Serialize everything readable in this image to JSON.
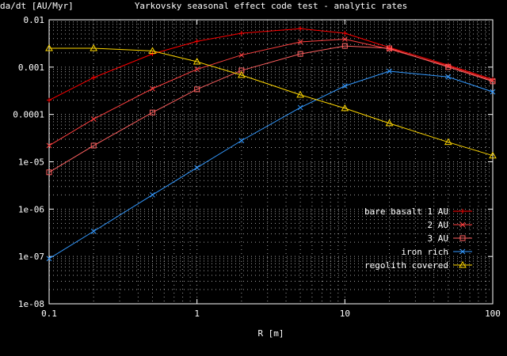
{
  "chart_data": {
    "type": "line",
    "title": "Yarkovsky seasonal effect code test - analytic rates",
    "xlabel": "R [m]",
    "ylabel": "da/dt [AU/Myr]",
    "xscale": "log",
    "yscale": "log",
    "xlim": [
      0.1,
      100
    ],
    "ylim": [
      1e-08,
      0.01
    ],
    "grid": true,
    "legend_position": "bottom-right",
    "x_tick_labels": [
      "0.1",
      "1",
      "10",
      "100"
    ],
    "y_tick_labels": [
      "1e-08",
      "1e-07",
      "1e-06",
      "1e-05",
      "0.0001",
      "0.001",
      "0.01"
    ],
    "x": [
      0.1,
      0.2,
      0.5,
      1,
      2,
      5,
      10,
      20,
      50,
      100
    ],
    "series": [
      {
        "name": "bare basalt 1 AU",
        "color": "#ff0000",
        "marker": "plus",
        "values": [
          0.0002,
          0.0006,
          0.0019,
          0.0035,
          0.0052,
          0.0065,
          0.0052,
          0.0026,
          0.0011,
          0.00055
        ]
      },
      {
        "name": "2 AU",
        "color": "#ff4040",
        "marker": "cross",
        "values": [
          2.2e-05,
          8e-05,
          0.00035,
          0.0009,
          0.0018,
          0.0034,
          0.0039,
          0.0024,
          0.00105,
          0.00052
        ]
      },
      {
        "name": "3 AU",
        "color": "#ff6060",
        "marker": "square",
        "values": [
          6e-06,
          2.2e-05,
          0.00011,
          0.00034,
          0.00085,
          0.0019,
          0.0028,
          0.0025,
          0.001,
          0.0005
        ]
      },
      {
        "name": "iron rich",
        "color": "#3399ff",
        "marker": "cross",
        "values": [
          9e-08,
          3.4e-07,
          2e-06,
          7.5e-06,
          2.8e-05,
          0.00014,
          0.0004,
          0.00082,
          0.00062,
          0.0003
        ]
      },
      {
        "name": "regolith covered",
        "color": "#ffd700",
        "marker": "triangle",
        "values": [
          0.0025,
          0.0025,
          0.0022,
          0.0013,
          0.00068,
          0.00026,
          0.000135,
          6.5e-05,
          2.6e-05,
          1.35e-05
        ]
      }
    ]
  }
}
